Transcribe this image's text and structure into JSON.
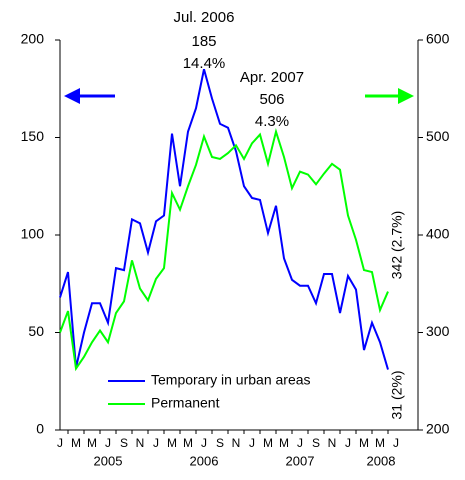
{
  "chart_data": {
    "type": "line",
    "categories": [
      "J",
      null,
      "M",
      null,
      "M",
      null,
      "J",
      null,
      "S",
      null,
      "N",
      null,
      "J",
      null,
      "M",
      null,
      "M",
      null,
      "J",
      null,
      "S",
      null,
      "N",
      null,
      "J",
      null,
      "M",
      null,
      "M",
      null,
      "J",
      null,
      "S",
      null,
      "N",
      null,
      "J",
      null,
      "M",
      null,
      "M",
      null,
      "J"
    ],
    "years": [
      "2005",
      "2006",
      "2007",
      "2008"
    ],
    "series": [
      {
        "name": "Temporary in urban areas",
        "color": "#0000ff",
        "axis": "y",
        "values": [
          68,
          81,
          32,
          50,
          65,
          65,
          55,
          83,
          82,
          108,
          106,
          91,
          107,
          110,
          152,
          125,
          153,
          165,
          185,
          170,
          157,
          155,
          143,
          125,
          119,
          118,
          101,
          115,
          88,
          77,
          74,
          74,
          65,
          80,
          80,
          60,
          79,
          72,
          41,
          55,
          45,
          31,
          null
        ]
      },
      {
        "name": "Permanent",
        "color": "#00ff00",
        "axis": "y2",
        "values": [
          300,
          322,
          263,
          275,
          290,
          302,
          290,
          320,
          332,
          374,
          345,
          333,
          355,
          366,
          443,
          426,
          450,
          472,
          501,
          480,
          478,
          484,
          492,
          478,
          494,
          503,
          473,
          506,
          480,
          448,
          465,
          462,
          452,
          463,
          473,
          467,
          420,
          395,
          364,
          362,
          323,
          342,
          null
        ]
      }
    ],
    "ylim": [
      0,
      200
    ],
    "yticks": [
      0,
      50,
      100,
      150,
      200
    ],
    "y2lim": [
      200,
      600
    ],
    "y2ticks": [
      200,
      300,
      400,
      500,
      600
    ],
    "annotations": [
      "Jul. 2006",
      "185",
      "14.4%",
      "Apr. 2007",
      "506",
      "4.3%",
      "342 (2.7%)",
      "31 (2%)"
    ],
    "legend": "lower left"
  }
}
